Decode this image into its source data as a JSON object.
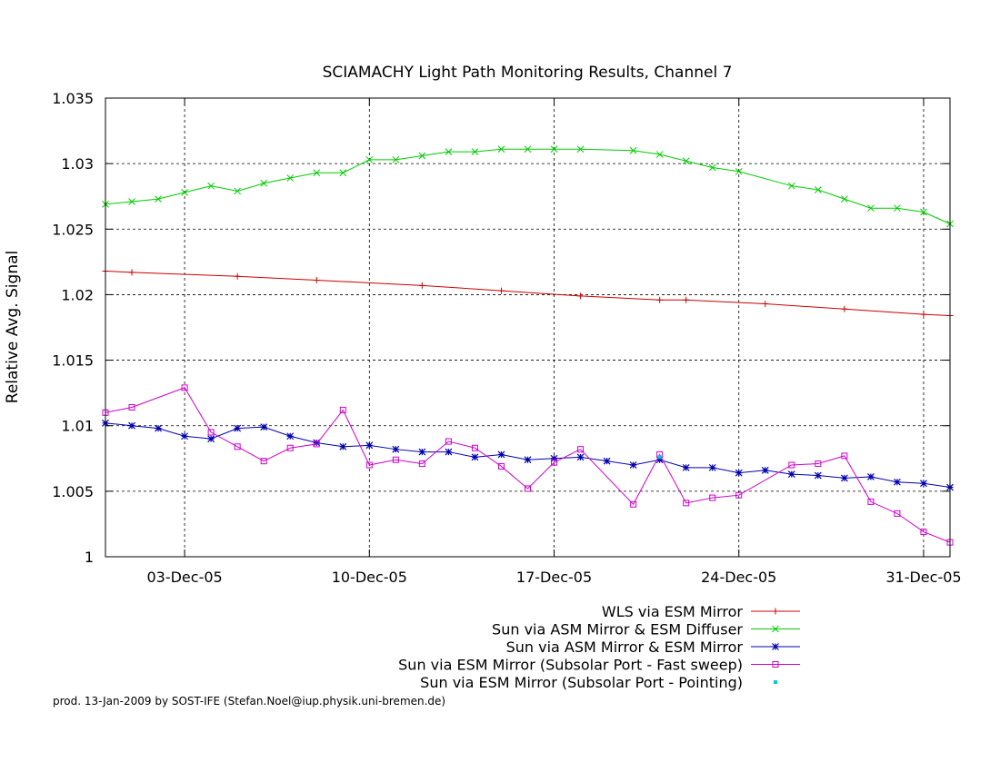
{
  "chart_data": {
    "type": "line",
    "title": "SCIAMACHY Light Path Monitoring Results, Channel 7",
    "xlabel": "",
    "ylabel": "Relative Avg. Signal",
    "x_axis": {
      "unit": "date",
      "range": [
        "2005-11-30",
        "2006-01-01"
      ],
      "ticks": [
        "03-Dec-05",
        "10-Dec-05",
        "17-Dec-05",
        "24-Dec-05",
        "31-Dec-05"
      ],
      "tick_values": [
        "2005-12-03",
        "2005-12-10",
        "2005-12-17",
        "2005-12-24",
        "2005-12-31"
      ]
    },
    "y_axis": {
      "range": [
        1.0,
        1.035
      ],
      "ticks": [
        "1",
        "1.005",
        "1.01",
        "1.015",
        "1.02",
        "1.025",
        "1.03",
        "1.035"
      ],
      "tick_values": [
        1.0,
        1.005,
        1.01,
        1.015,
        1.02,
        1.025,
        1.03,
        1.035
      ]
    },
    "grid": true,
    "legend_position": "bottom-right, below plot",
    "series": [
      {
        "name": "WLS via ESM Mirror",
        "color": "#cc0000",
        "marker": "plus",
        "x": [
          "2005-11-30",
          "2005-12-01",
          "2005-12-05",
          "2005-12-08",
          "2005-12-12",
          "2005-12-15",
          "2005-12-18",
          "2005-12-21",
          "2005-12-22",
          "2005-12-25",
          "2005-12-28",
          "2005-12-31",
          "2006-01-01"
        ],
        "y": [
          1.0218,
          1.0217,
          1.0214,
          1.0211,
          1.0207,
          1.0203,
          1.0199,
          1.0196,
          1.0196,
          1.0193,
          1.0189,
          1.0185,
          1.0184
        ]
      },
      {
        "name": "Sun via ASM Mirror & ESM Diffuser",
        "color": "#00cc00",
        "marker": "cross",
        "x": [
          "2005-11-30",
          "2005-12-01",
          "2005-12-02",
          "2005-12-03",
          "2005-12-04",
          "2005-12-05",
          "2005-12-06",
          "2005-12-07",
          "2005-12-08",
          "2005-12-09",
          "2005-12-10",
          "2005-12-11",
          "2005-12-12",
          "2005-12-13",
          "2005-12-14",
          "2005-12-15",
          "2005-12-16",
          "2005-12-17",
          "2005-12-18",
          "2005-12-20",
          "2005-12-21",
          "2005-12-22",
          "2005-12-23",
          "2005-12-24",
          "2005-12-26",
          "2005-12-27",
          "2005-12-28",
          "2005-12-29",
          "2005-12-30",
          "2005-12-31",
          "2006-01-01"
        ],
        "y": [
          1.0269,
          1.0271,
          1.0273,
          1.0278,
          1.0283,
          1.0279,
          1.0285,
          1.0289,
          1.0293,
          1.0293,
          1.0303,
          1.0303,
          1.0306,
          1.0309,
          1.0309,
          1.0311,
          1.0311,
          1.0311,
          1.0311,
          1.031,
          1.0307,
          1.0302,
          1.0297,
          1.0294,
          1.0283,
          1.028,
          1.0273,
          1.0266,
          1.0266,
          1.0263,
          1.0254
        ]
      },
      {
        "name": "Sun via ASM Mirror & ESM Mirror",
        "color": "#0000b0",
        "marker": "star",
        "x": [
          "2005-11-30",
          "2005-12-01",
          "2005-12-02",
          "2005-12-03",
          "2005-12-04",
          "2005-12-05",
          "2005-12-06",
          "2005-12-07",
          "2005-12-08",
          "2005-12-09",
          "2005-12-10",
          "2005-12-11",
          "2005-12-12",
          "2005-12-13",
          "2005-12-14",
          "2005-12-15",
          "2005-12-16",
          "2005-12-17",
          "2005-12-18",
          "2005-12-19",
          "2005-12-20",
          "2005-12-21",
          "2005-12-22",
          "2005-12-23",
          "2005-12-24",
          "2005-12-25",
          "2005-12-26",
          "2005-12-27",
          "2005-12-28",
          "2005-12-29",
          "2005-12-30",
          "2005-12-31",
          "2006-01-01"
        ],
        "y": [
          1.0102,
          1.01,
          1.0098,
          1.0092,
          1.009,
          1.0098,
          1.0099,
          1.0092,
          1.0087,
          1.0084,
          1.0085,
          1.0082,
          1.008,
          1.008,
          1.0076,
          1.0078,
          1.0074,
          1.0075,
          1.0076,
          1.0073,
          1.007,
          1.0074,
          1.0068,
          1.0068,
          1.0064,
          1.0066,
          1.0063,
          1.0062,
          1.006,
          1.0061,
          1.0057,
          1.0056,
          1.0053
        ]
      },
      {
        "name": "Sun via ESM Mirror (Subsolar Port - Fast sweep)",
        "color": "#cc00cc",
        "marker": "square",
        "x": [
          "2005-11-30",
          "2005-12-01",
          "2005-12-03",
          "2005-12-04",
          "2005-12-05",
          "2005-12-06",
          "2005-12-07",
          "2005-12-08",
          "2005-12-09",
          "2005-12-10",
          "2005-12-11",
          "2005-12-12",
          "2005-12-13",
          "2005-12-14",
          "2005-12-15",
          "2005-12-16",
          "2005-12-17",
          "2005-12-18",
          "2005-12-20",
          "2005-12-21",
          "2005-12-22",
          "2005-12-23",
          "2005-12-24",
          "2005-12-26",
          "2005-12-27",
          "2005-12-28",
          "2005-12-29",
          "2005-12-30",
          "2005-12-31",
          "2006-01-01"
        ],
        "y": [
          1.011,
          1.0114,
          1.0129,
          1.0095,
          1.0084,
          1.0073,
          1.0083,
          1.0086,
          1.0112,
          1.007,
          1.0074,
          1.0071,
          1.0088,
          1.0083,
          1.0069,
          1.0052,
          1.0072,
          1.0082,
          1.004,
          1.0078,
          1.0041,
          1.0045,
          1.0047,
          1.007,
          1.0071,
          1.0077,
          1.0042,
          1.0033,
          1.0019,
          1.0011
        ]
      },
      {
        "name": "Sun via ESM Mirror (Subsolar Port - Pointing)",
        "color": "#00cccc",
        "marker": "dot",
        "x": [
          "2005-12-21"
        ],
        "y": [
          1.0076
        ]
      }
    ]
  },
  "footer": {
    "credit": "prod. 13-Jan-2009 by SOST-IFE (Stefan.Noel@iup.physik.uni-bremen.de)"
  }
}
